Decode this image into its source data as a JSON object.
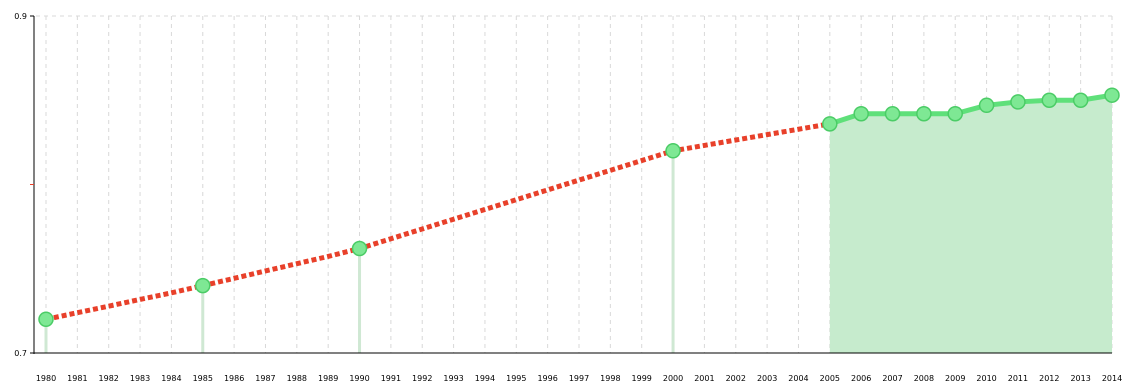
{
  "chart_data": {
    "type": "line",
    "title": "",
    "xlabel": "",
    "ylabel": "",
    "ylim": [
      0.7,
      0.9
    ],
    "grid": true,
    "y_ticks": [
      "0.9",
      "0.7"
    ],
    "x": [
      1980,
      1981,
      1982,
      1983,
      1984,
      1985,
      1986,
      1987,
      1988,
      1989,
      1990,
      1991,
      1992,
      1993,
      1994,
      1995,
      1996,
      1997,
      1998,
      1999,
      2000,
      2001,
      2002,
      2003,
      2004,
      2005,
      2006,
      2007,
      2008,
      2009,
      2010,
      2011,
      2012,
      2013,
      2014
    ],
    "x_labels": [
      "1980",
      "1981",
      "1982",
      "1983",
      "1984",
      "1985",
      "1986",
      "1987",
      "1988",
      "1989",
      "1990",
      "1991",
      "1992",
      "1993",
      "1994",
      "1995",
      "1996",
      "1997",
      "1998",
      "1999",
      "2000",
      "2001",
      "2002",
      "2003",
      "2004",
      "2005",
      "2006",
      "2007",
      "2008",
      "2009",
      "2010",
      "2011",
      "2012",
      "2013",
      "2014"
    ],
    "interpolated_series": {
      "style": "dashed",
      "color": "#e8402a",
      "x": [
        1980,
        1981,
        1982,
        1983,
        1984,
        1985,
        1986,
        1987,
        1988,
        1989,
        1990,
        1991,
        1992,
        1993,
        1994,
        1995,
        1996,
        1997,
        1998,
        1999,
        2000,
        2001,
        2002,
        2003,
        2004,
        2005
      ],
      "y": [
        0.72,
        0.7239,
        0.7278,
        0.7318,
        0.7357,
        0.74,
        0.7443,
        0.7487,
        0.753,
        0.7573,
        0.762,
        0.7678,
        0.7736,
        0.7794,
        0.7852,
        0.791,
        0.7968,
        0.8026,
        0.8084,
        0.8142,
        0.82,
        0.8232,
        0.8264,
        0.8296,
        0.8328,
        0.836
      ]
    },
    "measured_points": {
      "color": "#5fe07a",
      "x": [
        1980,
        1985,
        1990,
        2000
      ],
      "y": [
        0.72,
        0.74,
        0.762,
        0.82
      ]
    },
    "series": [
      {
        "color": "#5fe07a",
        "x": [
          2005,
          2006,
          2007,
          2008,
          2009,
          2010,
          2011,
          2012,
          2013,
          2014
        ],
        "y": [
          0.836,
          0.842,
          0.842,
          0.842,
          0.842,
          0.847,
          0.849,
          0.85,
          0.85,
          0.853
        ]
      }
    ],
    "colors": {
      "axis": "#000000",
      "grid": "#d8d8d8",
      "fill": "#c6ebcd",
      "drop_line": "#cfe8d3",
      "y_mid_tick": "#e8402a"
    }
  }
}
